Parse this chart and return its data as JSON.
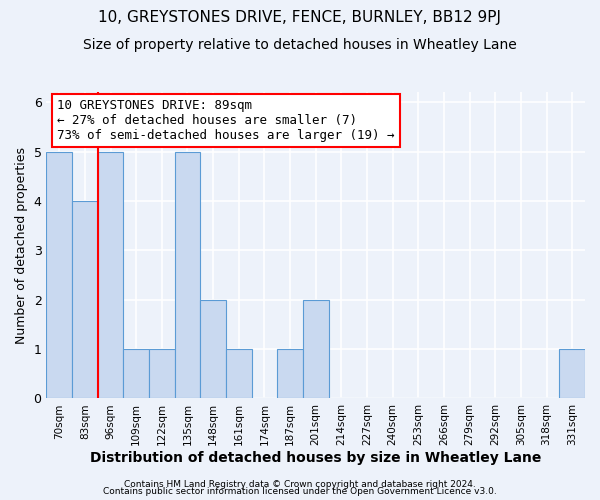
{
  "title": "10, GREYSTONES DRIVE, FENCE, BURNLEY, BB12 9PJ",
  "subtitle": "Size of property relative to detached houses in Wheatley Lane",
  "xlabel": "Distribution of detached houses by size in Wheatley Lane",
  "ylabel": "Number of detached properties",
  "bar_labels": [
    "70sqm",
    "83sqm",
    "96sqm",
    "109sqm",
    "122sqm",
    "135sqm",
    "148sqm",
    "161sqm",
    "174sqm",
    "187sqm",
    "201sqm",
    "214sqm",
    "227sqm",
    "240sqm",
    "253sqm",
    "266sqm",
    "279sqm",
    "292sqm",
    "305sqm",
    "318sqm",
    "331sqm"
  ],
  "bar_values": [
    5,
    4,
    5,
    1,
    1,
    5,
    2,
    1,
    0,
    1,
    2,
    0,
    0,
    0,
    0,
    0,
    0,
    0,
    0,
    0,
    1
  ],
  "bar_color": "#c9d9f0",
  "bar_edge_color": "#5b9bd5",
  "ylim": [
    0,
    6.2
  ],
  "yticks": [
    0,
    1,
    2,
    3,
    4,
    5,
    6
  ],
  "red_line_x": 1.5,
  "annotation_box_text": "10 GREYSTONES DRIVE: 89sqm\n← 27% of detached houses are smaller (7)\n73% of semi-detached houses are larger (19) →",
  "footer_line1": "Contains HM Land Registry data © Crown copyright and database right 2024.",
  "footer_line2": "Contains public sector information licensed under the Open Government Licence v3.0.",
  "background_color": "#edf2fa",
  "plot_background_color": "#edf2fa",
  "grid_color": "#ffffff",
  "title_fontsize": 11,
  "subtitle_fontsize": 10,
  "xlabel_fontsize": 10,
  "ylabel_fontsize": 9
}
